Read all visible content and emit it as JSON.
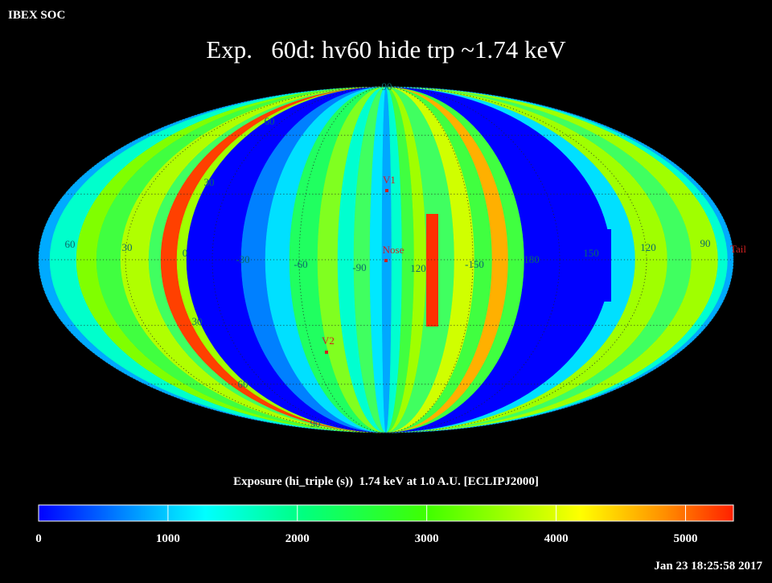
{
  "header": {
    "org": "IBEX SOC",
    "title": "Exp.   60d: hv60 hide trp ~1.74 keV",
    "timestamp": "Jan 23 18:25:58 2017"
  },
  "map": {
    "latitude_labels": [
      "90",
      "60",
      "30",
      "30",
      "60",
      "90"
    ],
    "longitude_labels": [
      "60",
      "30",
      "0",
      "-30",
      "-60",
      "-90",
      "120",
      "-150",
      "180",
      "150",
      "120",
      "90"
    ],
    "markers": [
      "V1",
      "Nose",
      "V2",
      "Tail"
    ]
  },
  "colorbar": {
    "label": "Exposure (hi_triple (s))  1.74 keV at 1.0 A.U. [ECLIPJ2000]",
    "range": [
      0,
      5370
    ],
    "ticks": [
      0,
      1000,
      2000,
      3000,
      4000,
      5000
    ]
  }
}
